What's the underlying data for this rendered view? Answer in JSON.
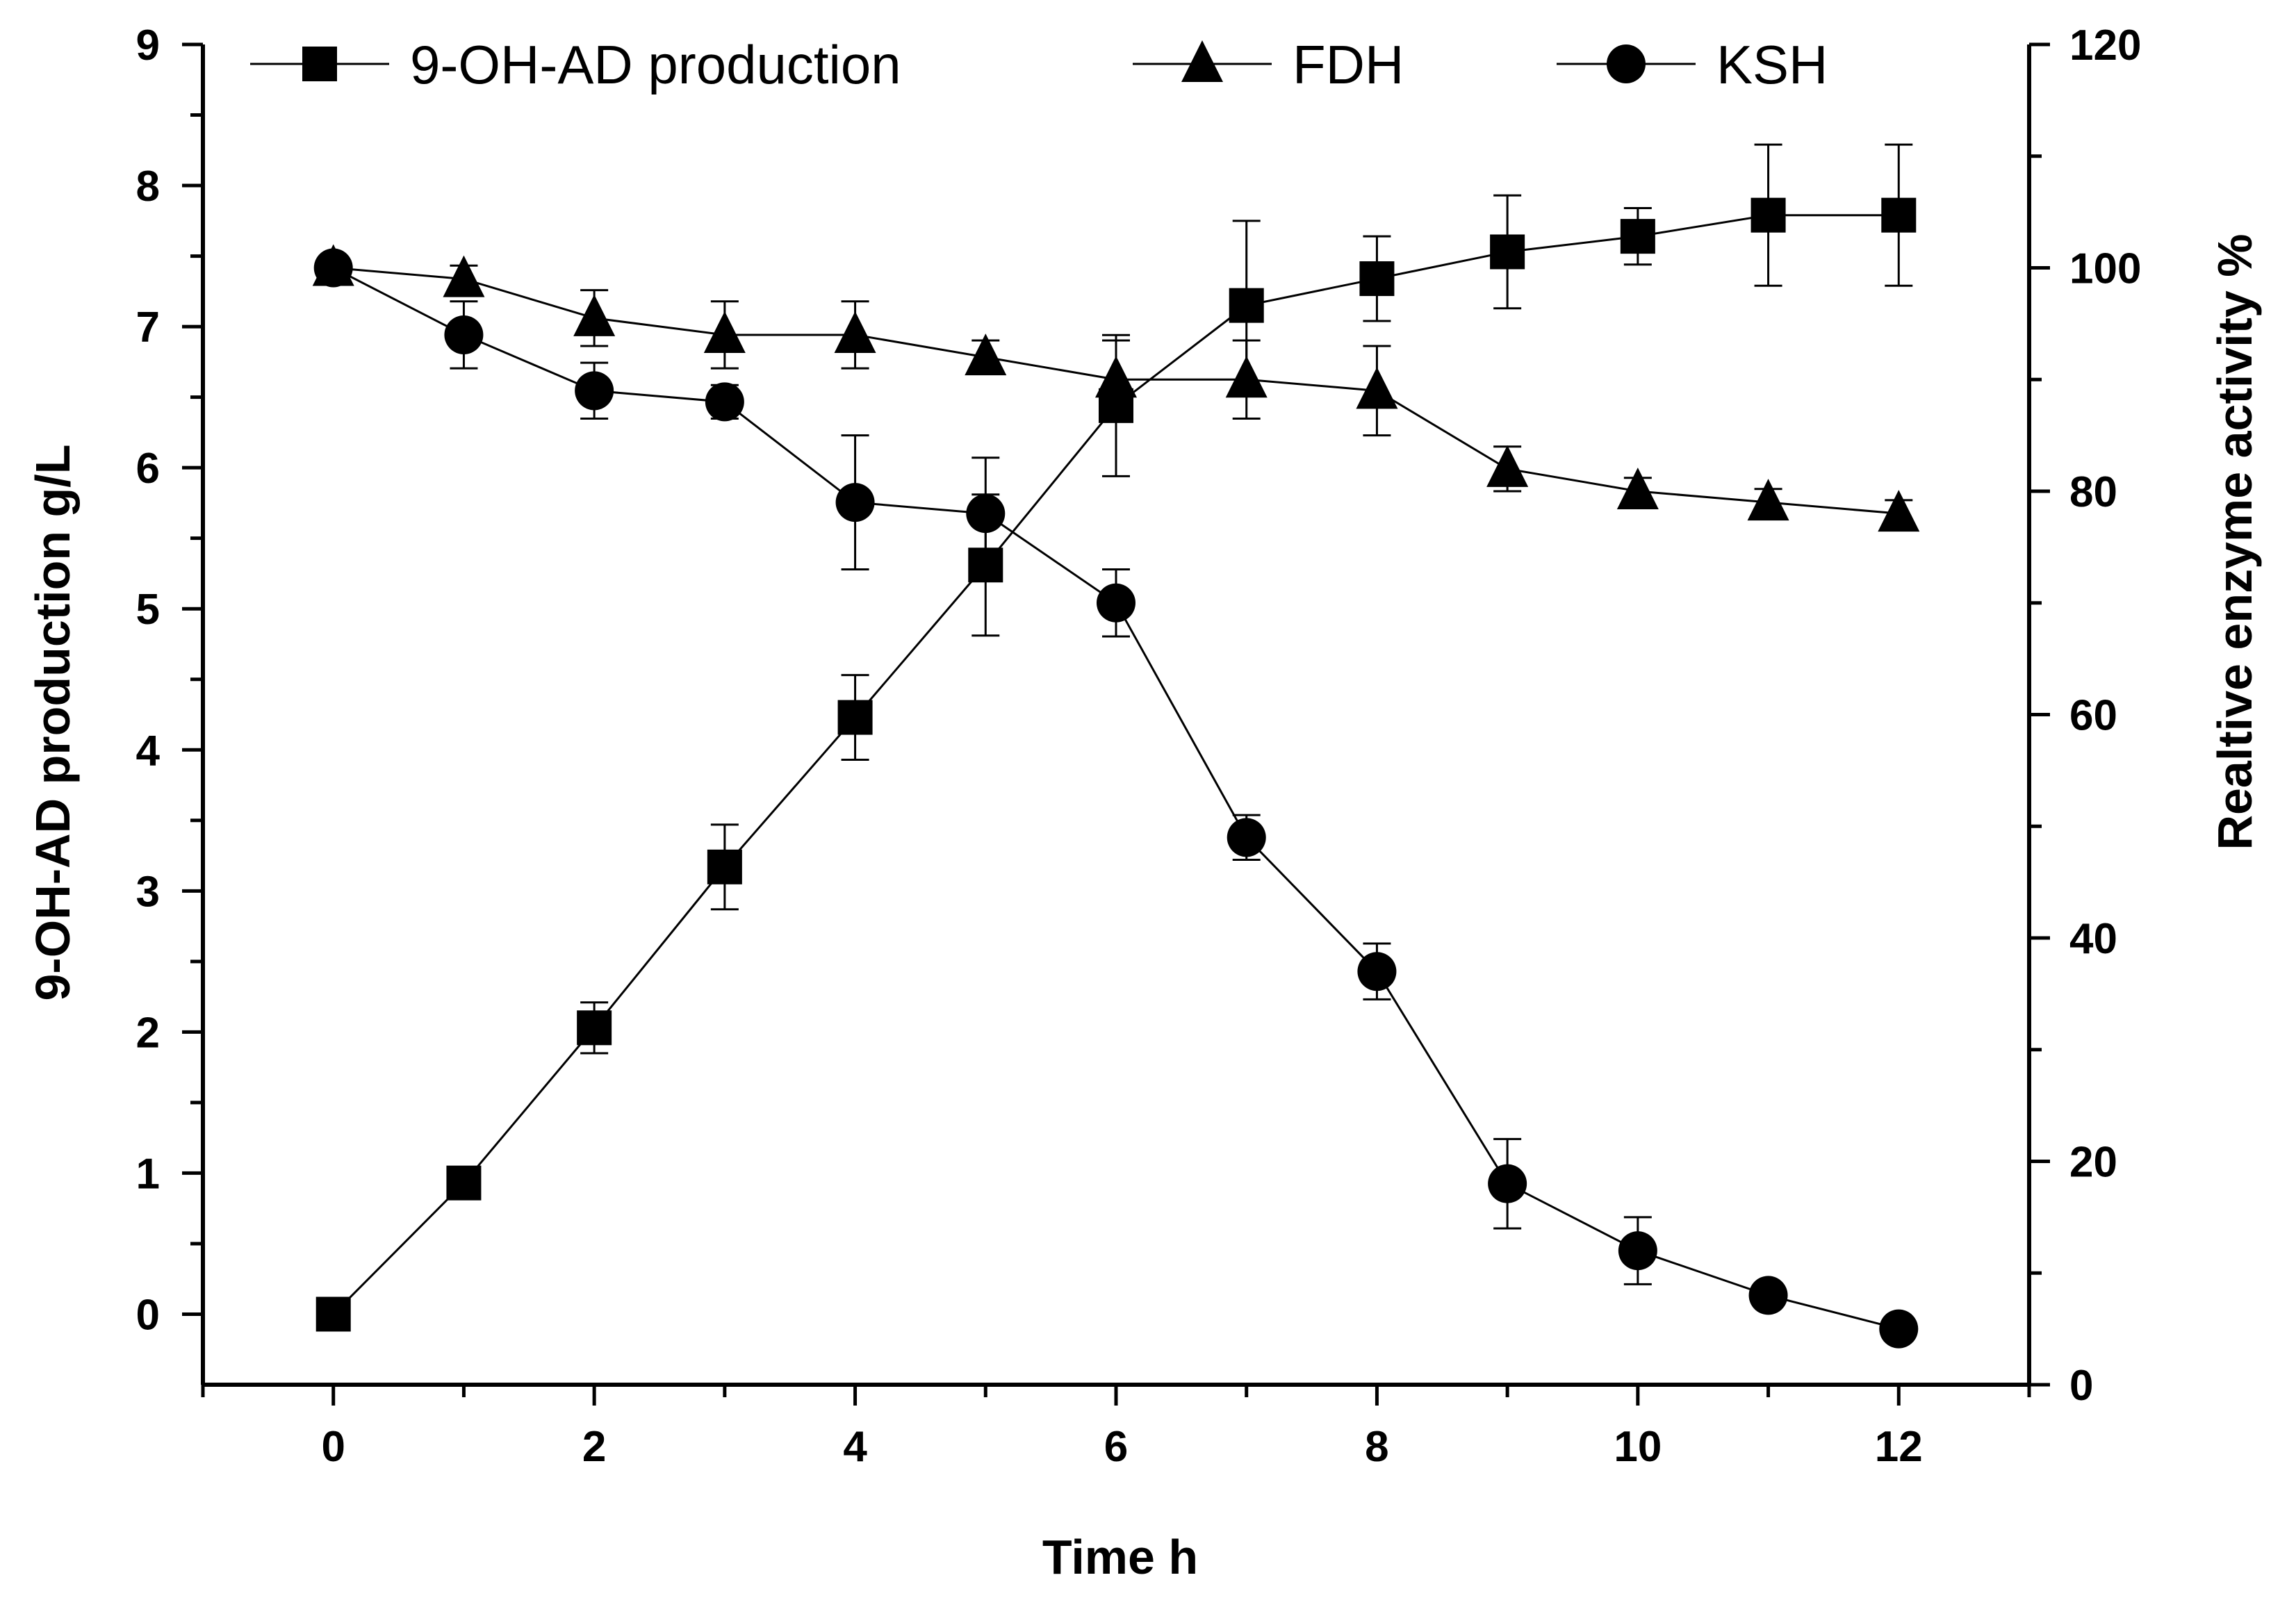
{
  "chart_data": {
    "type": "line",
    "title": "",
    "xlabel": "Time h",
    "ylabel_left": "9-OH-AD production g/L",
    "ylabel_right": "Realtive enzyme activity %",
    "xlim": [
      -1,
      13
    ],
    "ylim_left": [
      -0.5,
      9
    ],
    "ylim_right": [
      0,
      120
    ],
    "x_ticks": [
      0,
      2,
      4,
      6,
      8,
      10,
      12
    ],
    "x_tick_labels": [
      "0",
      "2",
      "4",
      "6",
      "8",
      "10",
      "12"
    ],
    "y_left_ticks": [
      0,
      1,
      2,
      3,
      4,
      5,
      6,
      7,
      8,
      9
    ],
    "y_left_tick_labels": [
      "0",
      "1",
      "2",
      "3",
      "4",
      "5",
      "6",
      "7",
      "8",
      "9"
    ],
    "y_right_ticks": [
      0,
      20,
      40,
      60,
      80,
      100,
      120
    ],
    "y_right_tick_labels": [
      "0",
      "20",
      "40",
      "60",
      "80",
      "100",
      "120"
    ],
    "grid": false,
    "legend_position": "top",
    "series": [
      {
        "name": "9-OH-AD production",
        "marker": "square",
        "axis": "left",
        "x": [
          0,
          1,
          2,
          3,
          4,
          5,
          6,
          7,
          8,
          9,
          10,
          11,
          12
        ],
        "values": [
          0.0,
          0.93,
          2.03,
          3.17,
          4.23,
          5.31,
          6.44,
          7.15,
          7.34,
          7.53,
          7.64,
          7.79,
          7.79
        ],
        "errors": [
          0.0,
          0.0,
          0.18,
          0.3,
          0.3,
          0.5,
          0.5,
          0.6,
          0.3,
          0.4,
          0.2,
          0.5,
          0.5
        ]
      },
      {
        "name": "FDH",
        "marker": "triangle",
        "axis": "right",
        "x": [
          0,
          1,
          2,
          3,
          4,
          5,
          6,
          7,
          8,
          9,
          10,
          11,
          12
        ],
        "values": [
          100,
          99,
          95.5,
          94,
          94,
          92,
          90,
          90,
          89,
          82,
          80,
          79,
          78
        ],
        "errors": [
          0,
          1.2,
          2.5,
          3,
          3,
          1.5,
          3.5,
          3.5,
          4,
          2,
          1.2,
          1.2,
          1.2
        ]
      },
      {
        "name": "KSH",
        "marker": "circle",
        "axis": "right",
        "x": [
          0,
          1,
          2,
          3,
          4,
          5,
          6,
          7,
          8,
          9,
          10,
          11,
          12
        ],
        "values": [
          100,
          94,
          89,
          88,
          79,
          78,
          70,
          49,
          37,
          18,
          12,
          8,
          5
        ],
        "errors": [
          0,
          3,
          2.5,
          1.5,
          6,
          5,
          3,
          2,
          2.5,
          4,
          3,
          0,
          0
        ]
      }
    ]
  }
}
